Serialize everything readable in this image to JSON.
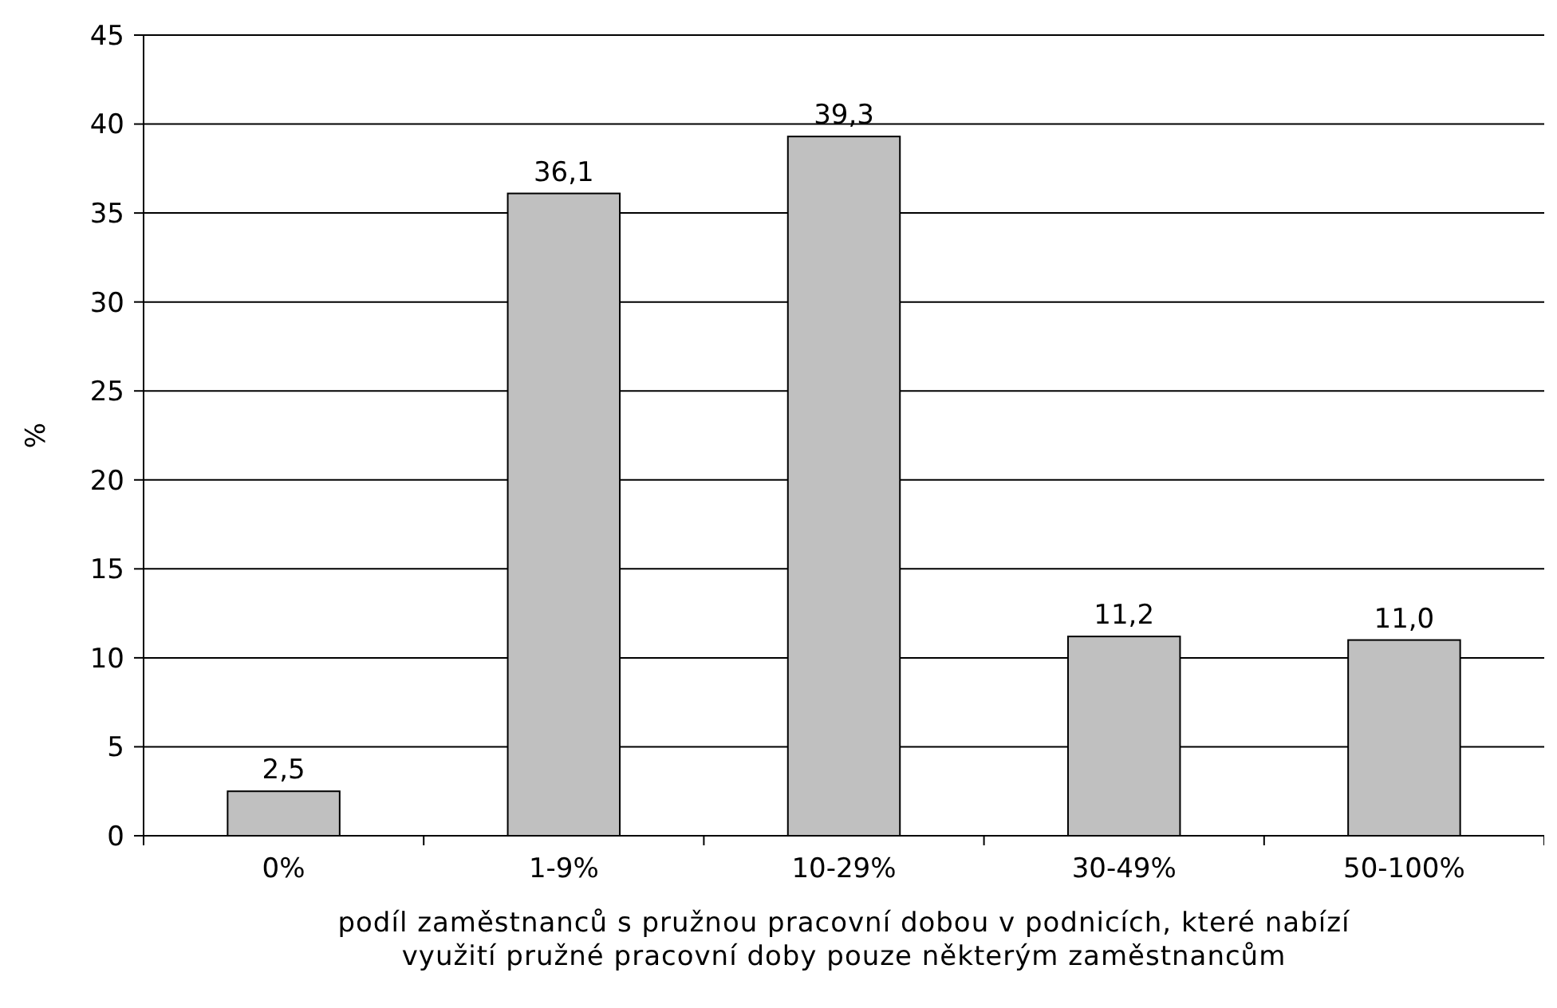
{
  "chart_data": {
    "type": "bar",
    "ylabel": "%",
    "xlabel": "podíl zaměstnanců s pružnou pracovní dobou v podnicích, které nabízí využití pružné pracovní doby pouze některým zaměstnancům",
    "categories": [
      "0%",
      "1-9%",
      "10-29%",
      "30-49%",
      "50-100%"
    ],
    "values": [
      2.5,
      36.1,
      39.3,
      11.2,
      11.0
    ],
    "value_labels": [
      "2,5",
      "36,1",
      "39,3",
      "11,2",
      "11,0"
    ],
    "color": "#c0c0c0",
    "ylim": [
      0,
      45
    ],
    "yticks": [
      0,
      5,
      10,
      15,
      20,
      25,
      30,
      35,
      40,
      45
    ],
    "grid": "y"
  }
}
